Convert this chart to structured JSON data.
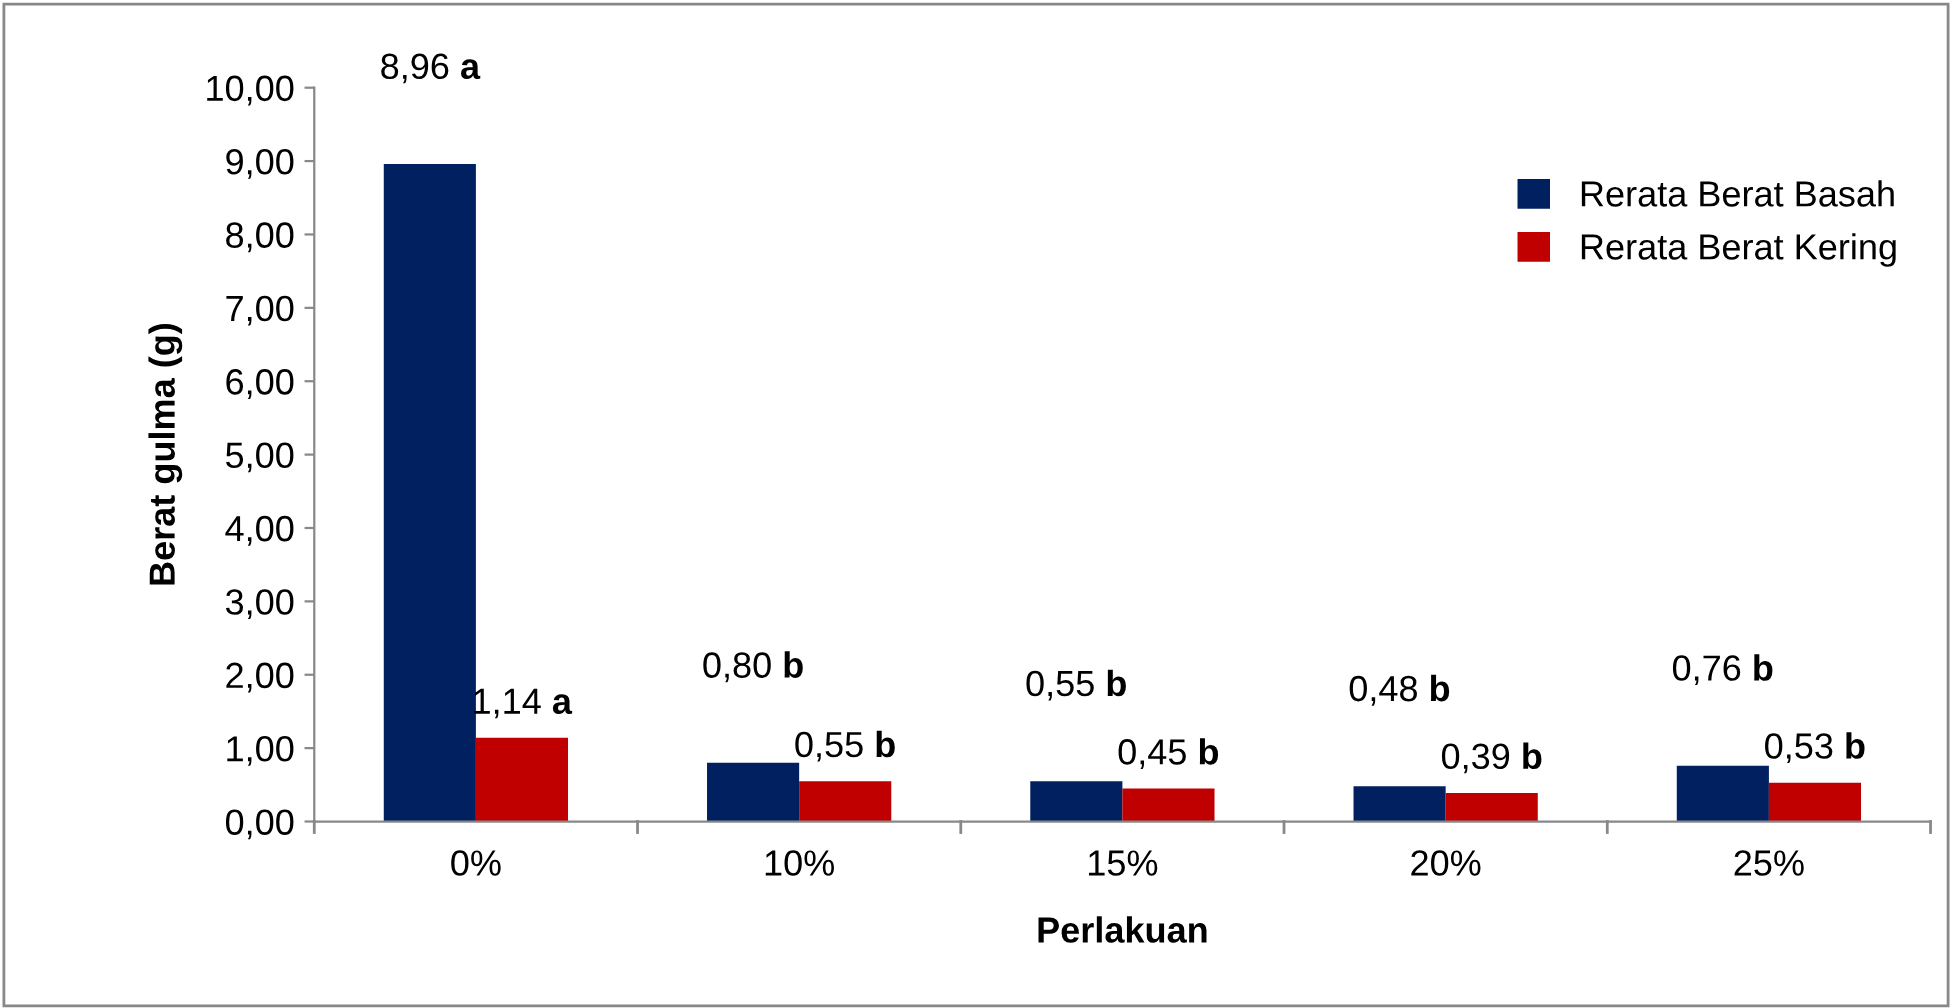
{
  "chart_data": {
    "type": "bar",
    "xlabel": "Perlakuan",
    "ylabel": "Berat gulma (g)",
    "categories": [
      "0%",
      "10%",
      "15%",
      "20%",
      "25%"
    ],
    "series": [
      {
        "name": "Rerata Berat Basah",
        "color": "#002060",
        "values": [
          8.96,
          0.8,
          0.55,
          0.48,
          0.76
        ],
        "value_labels": [
          "8,96 a",
          "0,80 b",
          "0,55 b",
          "0,48 b",
          "0,76 b"
        ]
      },
      {
        "name": "Rerata Berat Kering",
        "color": "#c00000",
        "values": [
          1.14,
          0.55,
          0.45,
          0.39,
          0.53
        ],
        "value_labels": [
          "1,14 a",
          "0,55 b",
          "0,45 b",
          "0,39 b",
          "0,53 b"
        ]
      }
    ],
    "ylim": [
      0,
      10
    ],
    "yticks": [
      {
        "value": 0,
        "label": "0,00"
      },
      {
        "value": 1,
        "label": "1,00"
      },
      {
        "value": 2,
        "label": "2,00"
      },
      {
        "value": 3,
        "label": "3,00"
      },
      {
        "value": 4,
        "label": "4,00"
      },
      {
        "value": 5,
        "label": "5,00"
      },
      {
        "value": 6,
        "label": "6,00"
      },
      {
        "value": 7,
        "label": "7,00"
      },
      {
        "value": 8,
        "label": "8,00"
      },
      {
        "value": 9,
        "label": "9,00"
      },
      {
        "value": 10,
        "label": "10,00"
      }
    ],
    "grid": false,
    "legend": "top right"
  }
}
